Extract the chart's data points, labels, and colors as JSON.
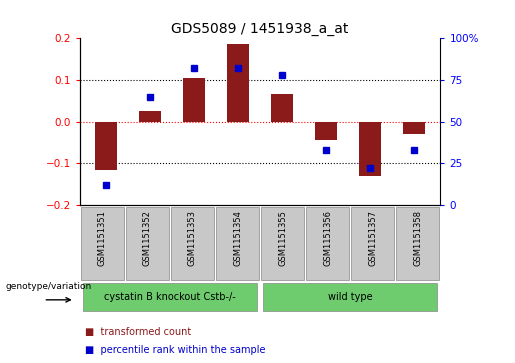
{
  "title": "GDS5089 / 1451938_a_at",
  "samples": [
    "GSM1151351",
    "GSM1151352",
    "GSM1151353",
    "GSM1151354",
    "GSM1151355",
    "GSM1151356",
    "GSM1151357",
    "GSM1151358"
  ],
  "bar_values": [
    -0.115,
    0.025,
    0.105,
    0.185,
    0.065,
    -0.045,
    -0.13,
    -0.03
  ],
  "dot_values_pct": [
    12,
    65,
    82,
    82,
    78,
    33,
    22,
    33
  ],
  "bar_color": "#8B1A1A",
  "dot_color": "#0000CD",
  "ylim": [
    -0.2,
    0.2
  ],
  "right_ylim": [
    0,
    100
  ],
  "yticks_left": [
    -0.2,
    -0.1,
    0.0,
    0.1,
    0.2
  ],
  "yticks_right": [
    0,
    25,
    50,
    75,
    100
  ],
  "group1_label": "cystatin B knockout Cstb-/-",
  "group2_label": "wild type",
  "group1_color": "#6ECC6E",
  "group2_color": "#6ECC6E",
  "sample_box_color": "#C8C8C8",
  "legend_bar_label": "transformed count",
  "legend_dot_label": "percentile rank within the sample",
  "genotype_label": "genotype/variation",
  "bar_width": 0.5,
  "title_fontsize": 10,
  "tick_fontsize": 7.5,
  "label_fontsize": 7.5
}
